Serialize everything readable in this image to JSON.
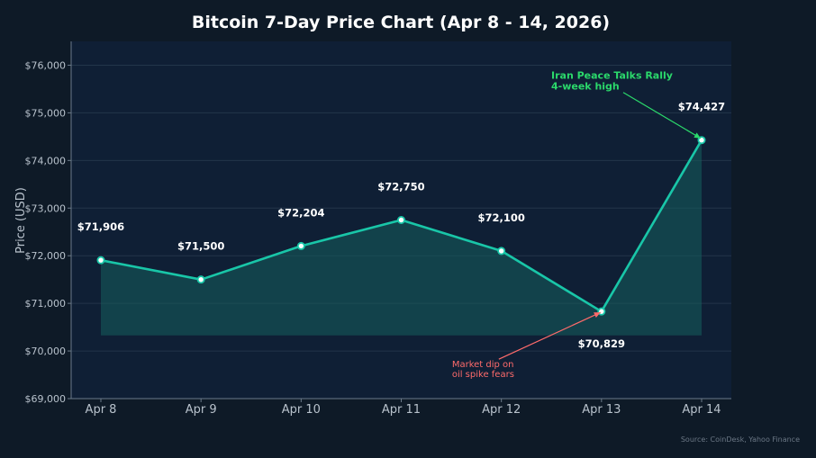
{
  "chart_data": {
    "type": "line",
    "title": "Bitcoin 7-Day Price Chart (Apr 8 - 14, 2026)",
    "xlabel": "",
    "ylabel": "Price (USD)",
    "categories": [
      "Apr 8",
      "Apr 9",
      "Apr 10",
      "Apr 11",
      "Apr 12",
      "Apr 13",
      "Apr 14"
    ],
    "values": [
      71906,
      71500,
      72204,
      72750,
      72100,
      70829,
      74427
    ],
    "data_labels": [
      "$71,906",
      "$71,500",
      "$72,204",
      "$72,750",
      "$72,100",
      "$70,829",
      "$74,427"
    ],
    "ylim": [
      69000,
      76500
    ],
    "fill_baseline": 70329,
    "yticks": [
      69000,
      70000,
      71000,
      72000,
      73000,
      74000,
      75000,
      76000
    ],
    "ytick_labels": [
      "$69,000",
      "$70,000",
      "$71,000",
      "$72,000",
      "$73,000",
      "$74,000",
      "$75,000",
      "$76,000"
    ],
    "grid": true,
    "annotations": [
      {
        "point_index": 6,
        "lines": [
          "Iran Peace Talks Rally",
          "4-week high"
        ],
        "color": "#2bd96b"
      },
      {
        "point_index": 5,
        "lines": [
          "Market dip on",
          "oil spike fears"
        ],
        "color": "#ff6b6b"
      }
    ],
    "source": "Source: CoinDesk, Yahoo Finance"
  },
  "colors": {
    "background": "#0e1a27",
    "plot_background": "#0f1f35",
    "line": "#19c6a8",
    "fill": "#155e5c",
    "grid": "#23354a",
    "axis": "#6b7a8a"
  }
}
